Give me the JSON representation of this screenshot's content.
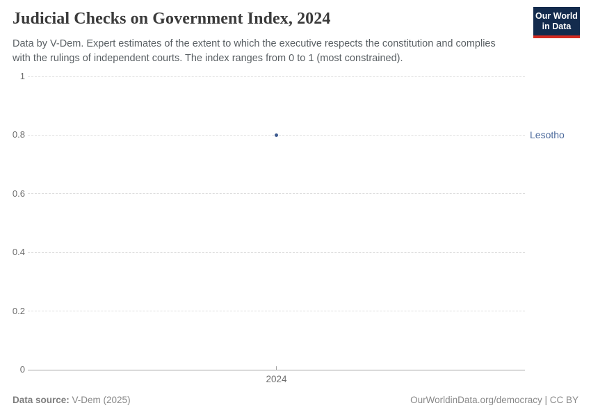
{
  "header": {
    "title": "Judicial Checks on Government Index, 2024",
    "subtitle_lines": [
      "Data by V-Dem. Expert estimates of the extent to which the executive respects the constitution and complies",
      "with the rulings of independent courts. The index ranges from 0 to 1 (most constrained)."
    ],
    "logo": {
      "line1": "Our World",
      "line2": "in Data",
      "bg_color": "#132B4D",
      "bar_color": "#D42B21"
    }
  },
  "chart_data": {
    "type": "scatter",
    "title": "Judicial Checks on Government Index, 2024",
    "x": [
      2024
    ],
    "xtick_labels": [
      "2024"
    ],
    "series": [
      {
        "name": "Lesotho",
        "values": [
          0.8
        ],
        "color": "#3D5A8F",
        "label_color": "#4C6A9C"
      }
    ],
    "ylim": [
      0,
      1
    ],
    "yticks": [
      0,
      0.2,
      0.4,
      0.6,
      0.8,
      1
    ],
    "ytick_labels": [
      "0",
      "0.2",
      "0.4",
      "0.6",
      "0.8",
      "1"
    ],
    "xlabel": "",
    "ylabel": "",
    "grid": "horizontal dashed",
    "legend_position": "right-of-point",
    "gridline_color": "#dcdcdc",
    "axis_color": "#a3a3a3",
    "tick_label_color": "#6e6e6e"
  },
  "footer": {
    "source_label": "Data source:",
    "source_value": " V-Dem (2025)",
    "credit": "OurWorldinData.org/democracy | CC BY"
  }
}
